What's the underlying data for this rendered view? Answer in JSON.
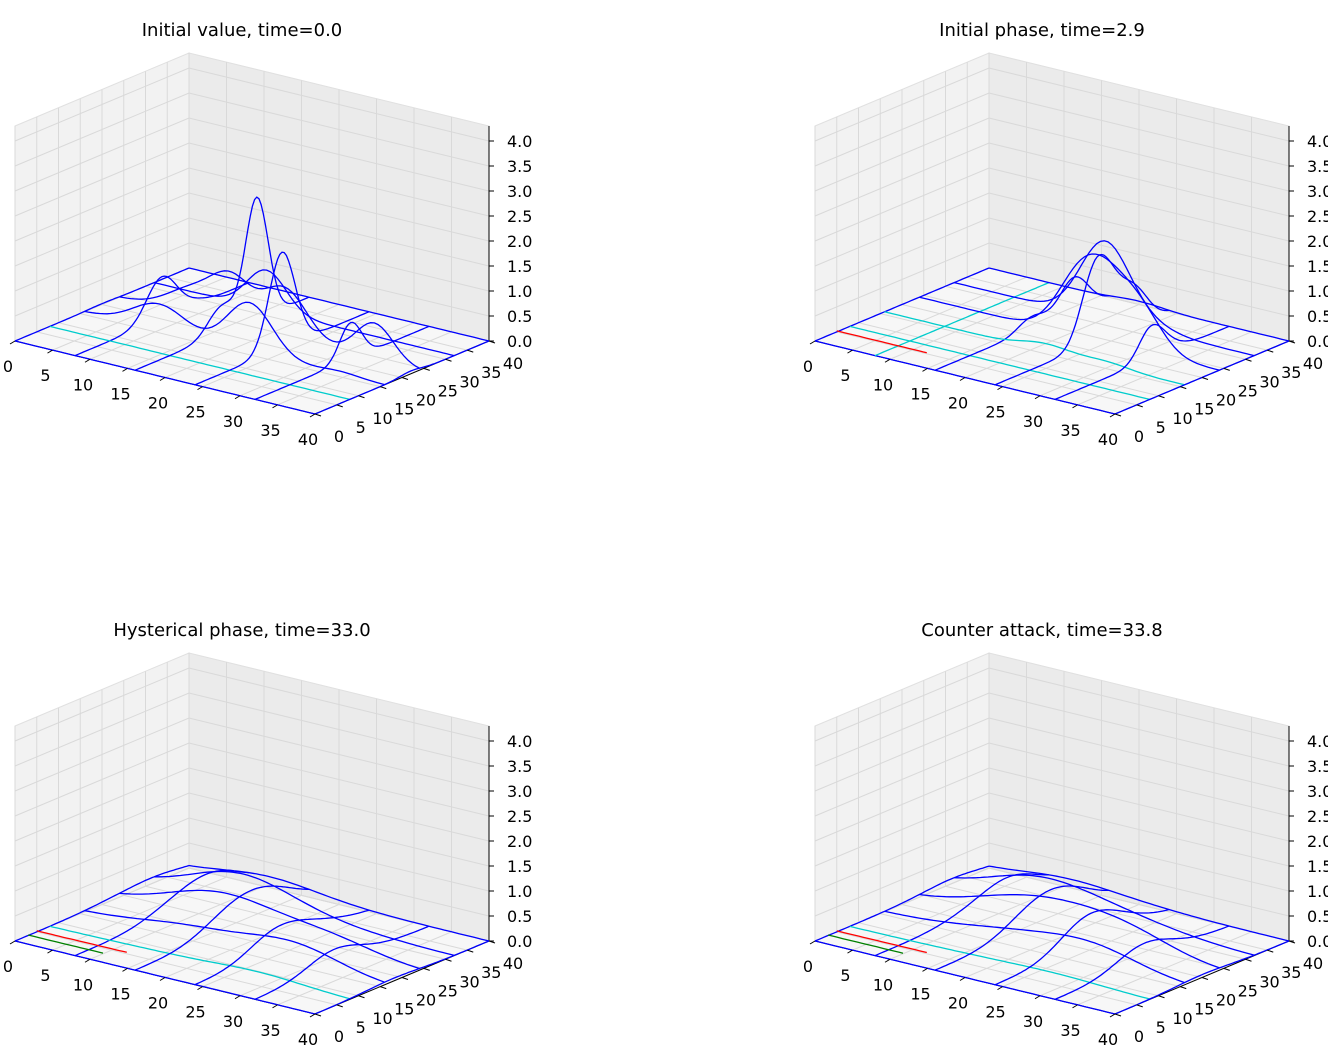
{
  "chart_data": [
    {
      "type": "surface-wireframe",
      "title": "Initial value, time=0.0",
      "x_ticks": [
        "0",
        "5",
        "10",
        "15",
        "20",
        "25",
        "30",
        "35",
        "40"
      ],
      "y_ticks": [
        "0",
        "5",
        "10",
        "15",
        "20",
        "25",
        "30",
        "35",
        "40"
      ],
      "z_ticks": [
        "0.0",
        "0.5",
        "1.0",
        "1.5",
        "2.0",
        "2.5",
        "3.0",
        "3.5",
        "4.0"
      ],
      "xlim": [
        0,
        40
      ],
      "ylim": [
        0,
        40
      ],
      "zlim": [
        0,
        4.3
      ],
      "grid": true,
      "series_colors": [
        "#0000ff",
        "#00cccc"
      ],
      "peaks": [
        {
          "x": 22,
          "y": 20,
          "z": 2.4,
          "width": 3.0
        },
        {
          "x": 15,
          "y": 28,
          "z": 2.6,
          "width": 2.6
        },
        {
          "x": 10,
          "y": 20,
          "z": 1.0,
          "width": 3.5
        },
        {
          "x": 34,
          "y": 22,
          "z": 1.0,
          "width": 2.5
        }
      ]
    },
    {
      "type": "surface-wireframe",
      "title": "Initial phase, time=2.9",
      "x_ticks": [
        "0",
        "5",
        "10",
        "15",
        "20",
        "25",
        "30",
        "35",
        "40"
      ],
      "y_ticks": [
        "0",
        "5",
        "10",
        "15",
        "20",
        "25",
        "30",
        "35",
        "40"
      ],
      "z_ticks": [
        "0.0",
        "0.5",
        "1.0",
        "1.5",
        "2.0",
        "2.5",
        "3.0",
        "3.5",
        "4.0"
      ],
      "xlim": [
        0,
        40
      ],
      "ylim": [
        0,
        40
      ],
      "zlim": [
        0,
        4.3
      ],
      "grid": true,
      "series_colors": [
        "#0000ff",
        "#00cccc",
        "#ff0000"
      ],
      "peaks": [
        {
          "x": 20,
          "y": 32,
          "z": 1.5,
          "width": 3.2
        },
        {
          "x": 25,
          "y": 25,
          "z": 1.3,
          "width": 3.5
        },
        {
          "x": 30,
          "y": 22,
          "z": 0.7,
          "width": 2.8
        },
        {
          "x": 21,
          "y": 22,
          "z": 0.9,
          "width": 3.0
        }
      ]
    },
    {
      "type": "surface-wireframe",
      "title": "Hysterical phase, time=33.0",
      "x_ticks": [
        "0",
        "5",
        "10",
        "15",
        "20",
        "25",
        "30",
        "35",
        "40"
      ],
      "y_ticks": [
        "0",
        "5",
        "10",
        "15",
        "20",
        "25",
        "30",
        "35",
        "40"
      ],
      "z_ticks": [
        "0.0",
        "0.5",
        "1.0",
        "1.5",
        "2.0",
        "2.5",
        "3.0",
        "3.5",
        "4.0"
      ],
      "xlim": [
        0,
        40
      ],
      "ylim": [
        0,
        40
      ],
      "zlim": [
        0,
        4.3
      ],
      "grid": true,
      "series_colors": [
        "#0000ff",
        "#00cccc",
        "#ff0000",
        "#008000"
      ],
      "peaks": [
        {
          "x": 15,
          "y": 25,
          "z": 0.5,
          "width": 7.0
        },
        {
          "x": 28,
          "y": 18,
          "z": 0.4,
          "width": 6.0
        },
        {
          "x": 10,
          "y": 33,
          "z": 0.35,
          "width": 6.0
        }
      ]
    },
    {
      "type": "surface-wireframe",
      "title": "Counter attack, time=33.8",
      "x_ticks": [
        "0",
        "5",
        "10",
        "15",
        "20",
        "25",
        "30",
        "35",
        "40"
      ],
      "y_ticks": [
        "0",
        "5",
        "10",
        "15",
        "20",
        "25",
        "30",
        "35",
        "40"
      ],
      "z_ticks": [
        "0.0",
        "0.5",
        "1.0",
        "1.5",
        "2.0",
        "2.5",
        "3.0",
        "3.5",
        "4.0"
      ],
      "xlim": [
        0,
        40
      ],
      "ylim": [
        0,
        40
      ],
      "zlim": [
        0,
        4.3
      ],
      "grid": true,
      "series_colors": [
        "#0000ff",
        "#00cccc",
        "#ff0000",
        "#008000"
      ],
      "peaks": [
        {
          "x": 18,
          "y": 25,
          "z": 0.5,
          "width": 7.0
        },
        {
          "x": 28,
          "y": 20,
          "z": 0.4,
          "width": 6.0
        },
        {
          "x": 10,
          "y": 32,
          "z": 0.35,
          "width": 6.0
        }
      ]
    }
  ]
}
